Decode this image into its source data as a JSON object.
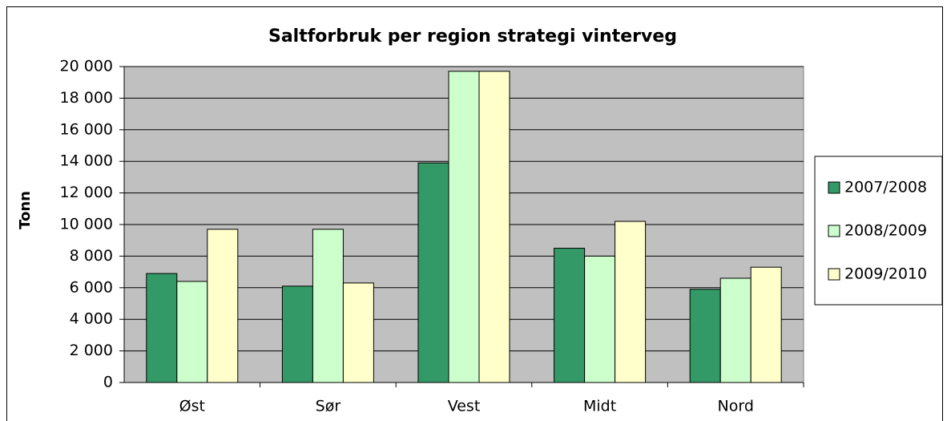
{
  "chart_data": {
    "type": "bar",
    "title": "Saltforbruk per region strategi vinterveg",
    "ylabel": "Tonn",
    "categories": [
      "Øst",
      "Sør",
      "Vest",
      "Midt",
      "Nord"
    ],
    "series": [
      {
        "name": "2007/2008",
        "color": "#339966",
        "values": [
          6900,
          6100,
          13900,
          8500,
          5900
        ]
      },
      {
        "name": "2008/2009",
        "color": "#ccffcc",
        "values": [
          6400,
          9700,
          19700,
          8000,
          6600
        ]
      },
      {
        "name": "2009/2010",
        "color": "#ffffcc",
        "values": [
          9700,
          6300,
          19700,
          10200,
          7300
        ]
      }
    ],
    "ylim": [
      0,
      20000
    ],
    "yticks": [
      0,
      {
        "value": 2000,
        "label": "2 000"
      },
      {
        "value": 4000,
        "label": "4 000"
      },
      {
        "value": 6000,
        "label": "6 000"
      },
      {
        "value": 8000,
        "label": "8 000"
      },
      {
        "value": 10000,
        "label": "10 000"
      },
      {
        "value": 12000,
        "label": "12 000"
      },
      {
        "value": 14000,
        "label": "14 000"
      },
      {
        "value": 16000,
        "label": "16 000"
      },
      {
        "value": 18000,
        "label": "18 000"
      },
      {
        "value": 20000,
        "label": "20 000"
      }
    ],
    "grid": true,
    "legend": "right",
    "plot_background": "#c0c0c0"
  }
}
